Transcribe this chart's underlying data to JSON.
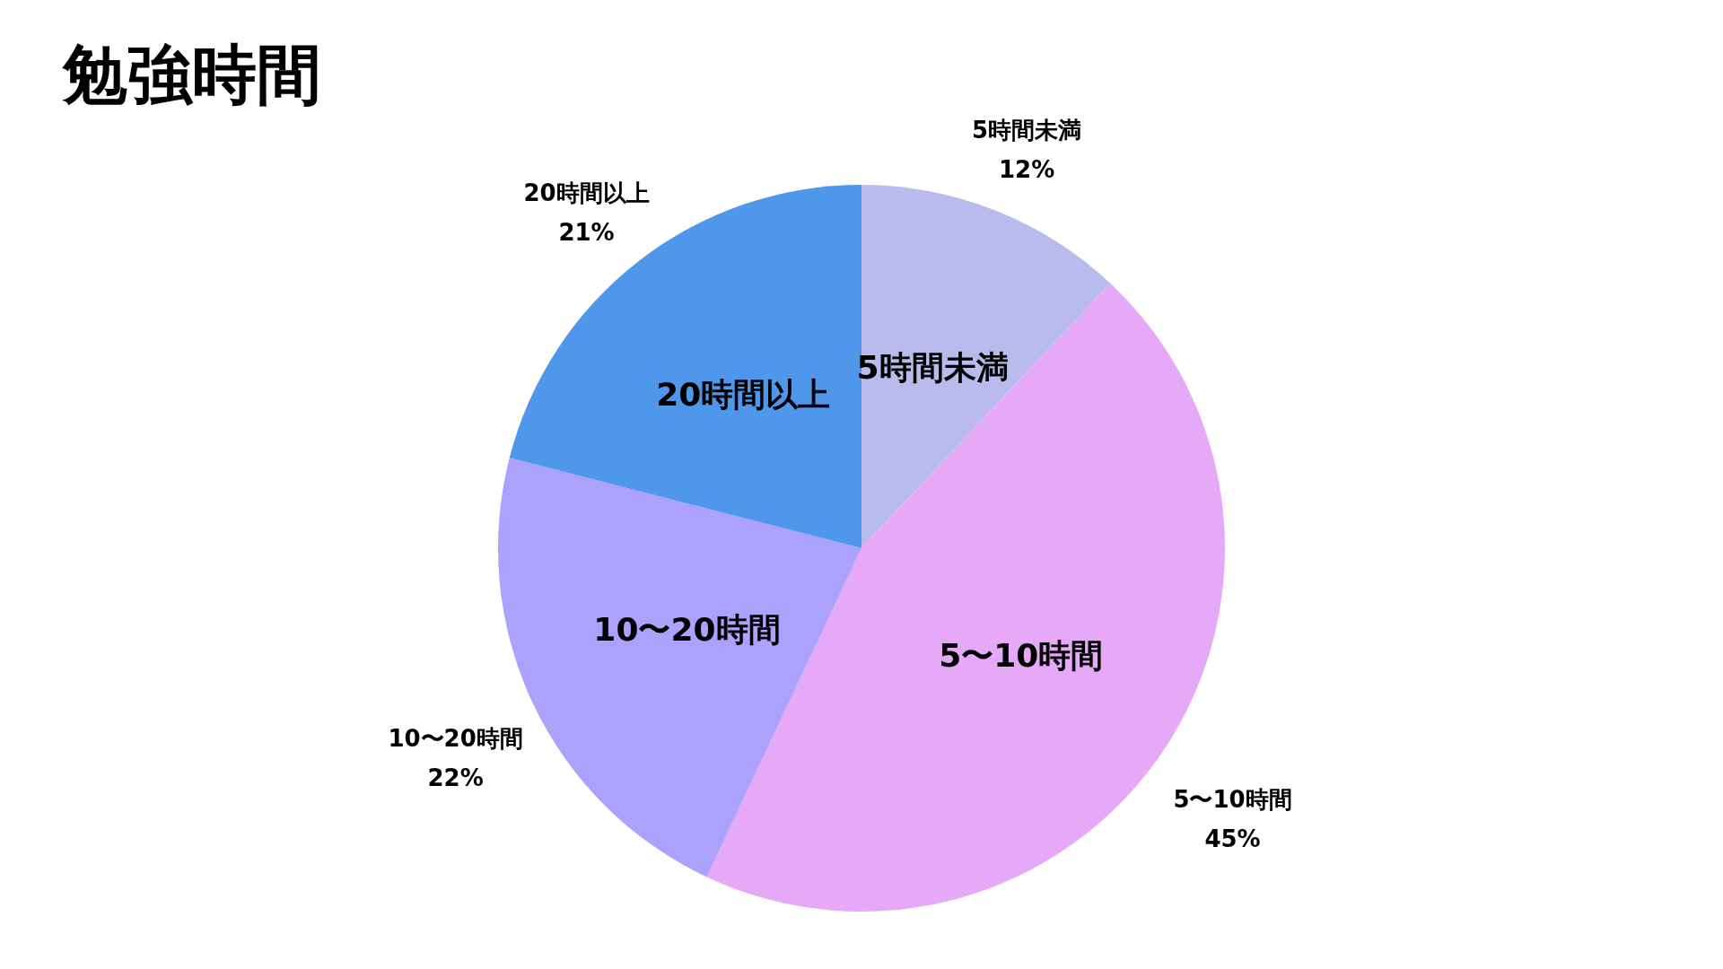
{
  "chart_data": {
    "type": "pie",
    "title": "勉強時間",
    "categories": [
      "5時間未満",
      "5〜10時間",
      "10〜20時間",
      "20時間以上"
    ],
    "values": [
      12,
      45,
      22,
      21
    ],
    "value_labels": [
      "12%",
      "45%",
      "22%",
      "21%"
    ],
    "colors": [
      "#b9bbed",
      "#e5a9f7",
      "#aca2fd",
      "#4f97eb"
    ],
    "legend": false
  }
}
